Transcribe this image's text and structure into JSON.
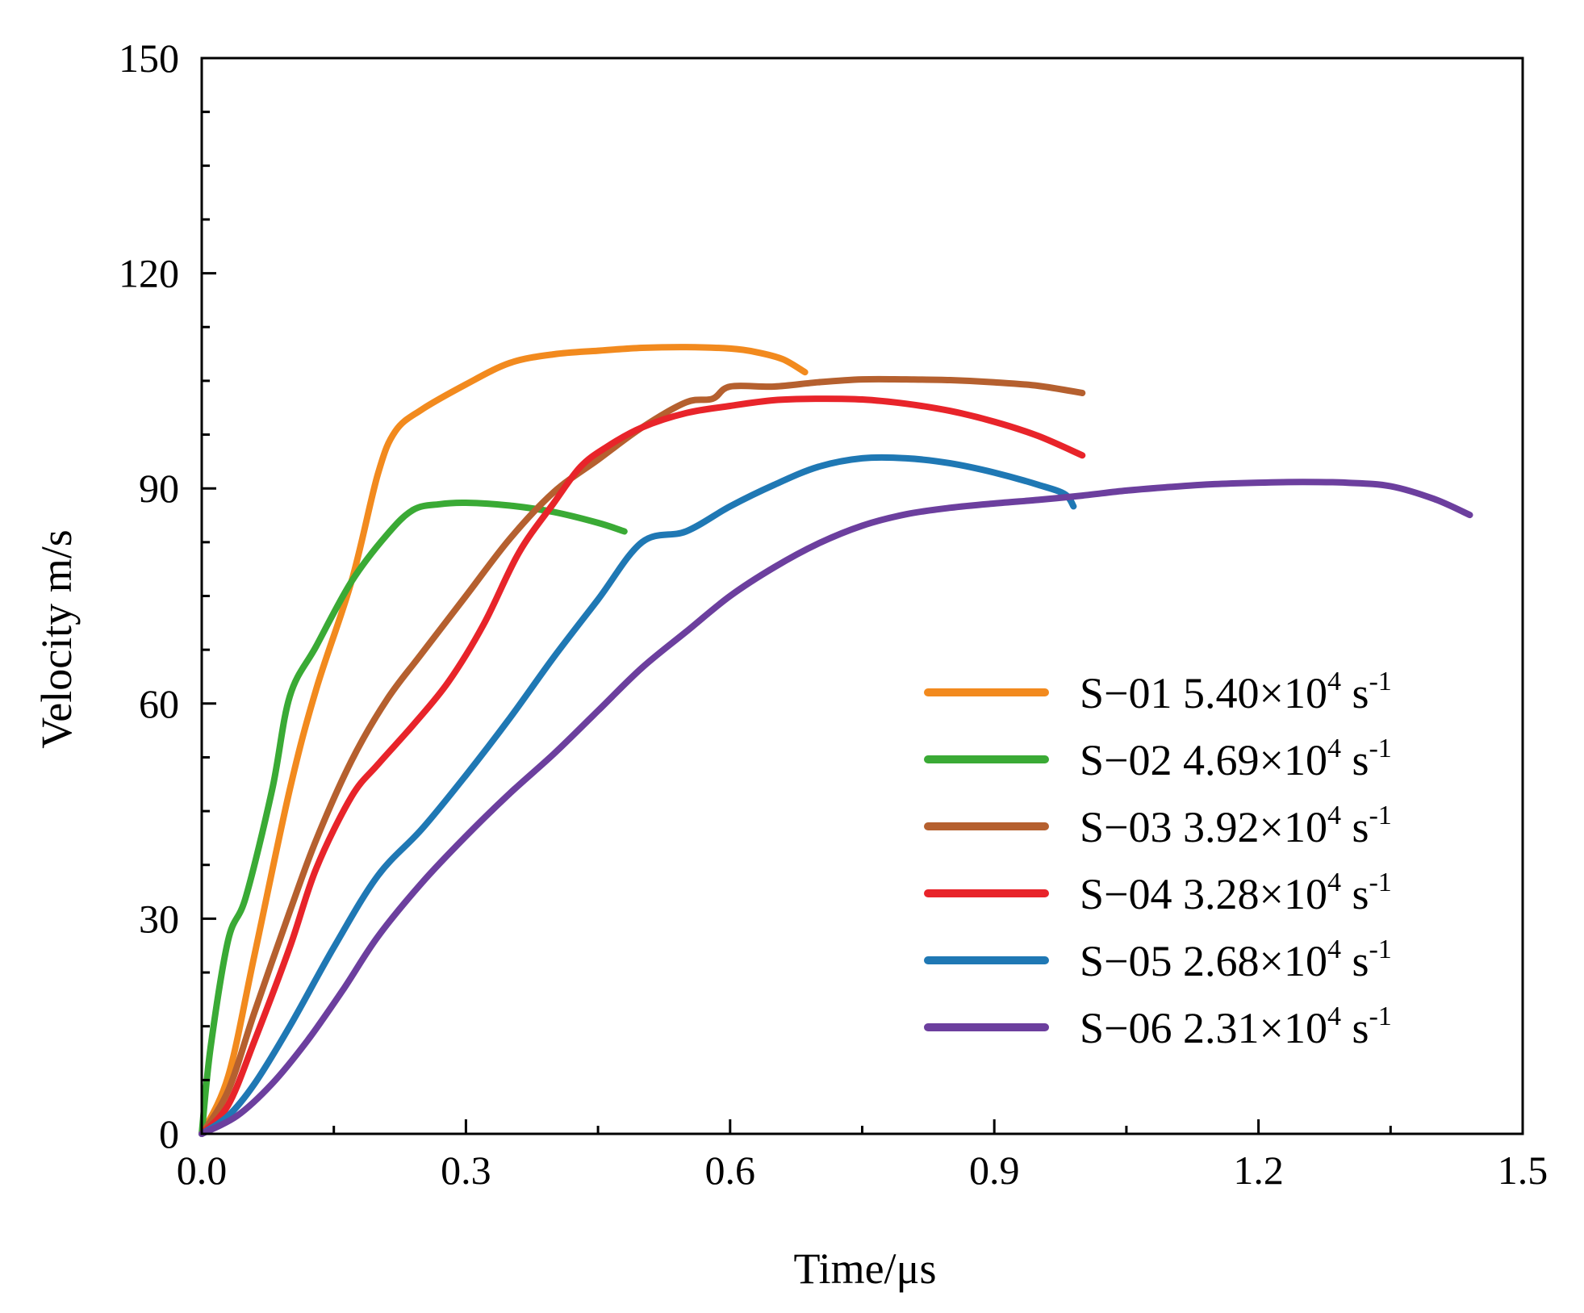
{
  "chart_data": {
    "type": "line",
    "title": "",
    "xlabel": "Time/μs",
    "ylabel": "Velocity m/s",
    "xlim": [
      0.0,
      1.5
    ],
    "ylim": [
      0,
      150
    ],
    "x_ticks": [
      0.0,
      0.3,
      0.6,
      0.9,
      1.2,
      1.5
    ],
    "x_tick_labels": [
      "0.0",
      "0.3",
      "0.6",
      "0.9",
      "1.2",
      "1.5"
    ],
    "x_minor_ticks": [
      0.15,
      0.45,
      0.75,
      1.05,
      1.35
    ],
    "y_ticks": [
      0,
      30,
      60,
      90,
      120,
      150
    ],
    "y_tick_labels": [
      "0",
      "30",
      "60",
      "90",
      "120",
      "150"
    ],
    "y_minor_ticks": [
      7.5,
      15,
      22.5,
      37.5,
      45,
      52.5,
      67.5,
      75,
      82.5,
      97.5,
      105,
      112.5,
      127.5,
      135,
      142.5
    ],
    "grid": false,
    "legend_position": "bottom-right",
    "series": [
      {
        "name": "S−01",
        "rate_mantissa": "5.40×10",
        "rate_exp": "4",
        "rate_unit": "s",
        "rate_unit_exp": "-1",
        "color": "#f28a1e",
        "x": [
          0.0,
          0.03,
          0.06,
          0.1,
          0.13,
          0.17,
          0.2,
          0.22,
          0.25,
          0.3,
          0.35,
          0.4,
          0.45,
          0.5,
          0.55,
          0.6,
          0.63,
          0.66,
          0.685
        ],
        "y": [
          0,
          8,
          25,
          48,
          62,
          77,
          92,
          98,
          101,
          104.5,
          107.5,
          108.7,
          109.2,
          109.6,
          109.7,
          109.5,
          109.0,
          108.0,
          106.2
        ]
      },
      {
        "name": "S−02",
        "rate_mantissa": "4.69×10",
        "rate_exp": "4",
        "rate_unit": "s",
        "rate_unit_exp": "-1",
        "color": "#3aaa35",
        "x": [
          0.0,
          0.01,
          0.03,
          0.05,
          0.08,
          0.1,
          0.13,
          0.17,
          0.21,
          0.24,
          0.27,
          0.3,
          0.35,
          0.4,
          0.45,
          0.48
        ],
        "y": [
          0,
          12,
          27,
          33,
          48,
          61,
          68,
          77,
          83.5,
          87,
          87.8,
          88.0,
          87.6,
          86.7,
          85.2,
          84
        ]
      },
      {
        "name": "S−03",
        "rate_mantissa": "3.92×10",
        "rate_exp": "4",
        "rate_unit": "s",
        "rate_unit_exp": "-1",
        "color": "#b5602f",
        "x": [
          0.0,
          0.03,
          0.06,
          0.1,
          0.13,
          0.17,
          0.21,
          0.25,
          0.3,
          0.35,
          0.4,
          0.45,
          0.5,
          0.55,
          0.58,
          0.6,
          0.65,
          0.7,
          0.75,
          0.8,
          0.85,
          0.9,
          0.95,
          1.0
        ],
        "y": [
          0,
          6,
          17,
          31,
          41,
          52,
          60.5,
          67,
          75,
          83,
          89.5,
          94,
          98.5,
          102,
          102.5,
          104.2,
          104.2,
          104.8,
          105.2,
          105.2,
          105.1,
          104.8,
          104.3,
          103.3
        ]
      },
      {
        "name": "S−04",
        "rate_mantissa": "3.28×10",
        "rate_exp": "4",
        "rate_unit": "s",
        "rate_unit_exp": "-1",
        "color": "#e8242a",
        "x": [
          0.0,
          0.03,
          0.06,
          0.1,
          0.13,
          0.17,
          0.2,
          0.24,
          0.28,
          0.32,
          0.36,
          0.4,
          0.43,
          0.46,
          0.5,
          0.55,
          0.6,
          0.65,
          0.7,
          0.75,
          0.8,
          0.85,
          0.9,
          0.95,
          1.0
        ],
        "y": [
          0,
          4,
          13,
          26,
          37,
          47,
          51.5,
          57,
          63,
          71,
          81,
          88,
          93,
          95.8,
          98.5,
          100.5,
          101.5,
          102.3,
          102.5,
          102.4,
          101.8,
          100.8,
          99.3,
          97.3,
          94.6
        ]
      },
      {
        "name": "S−05",
        "rate_mantissa": "2.68×10",
        "rate_exp": "4",
        "rate_unit": "s",
        "rate_unit_exp": "-1",
        "color": "#1f78b4",
        "x": [
          0.0,
          0.03,
          0.06,
          0.1,
          0.15,
          0.2,
          0.25,
          0.3,
          0.35,
          0.4,
          0.45,
          0.5,
          0.55,
          0.6,
          0.65,
          0.7,
          0.75,
          0.8,
          0.85,
          0.9,
          0.95,
          0.98,
          0.99
        ],
        "y": [
          0,
          2.5,
          7,
          15,
          26,
          36,
          42.5,
          50,
          58,
          66.5,
          74.5,
          82.5,
          84,
          87.5,
          90.5,
          93,
          94.2,
          94.2,
          93.5,
          92.2,
          90.5,
          89.2,
          87.5
        ]
      },
      {
        "name": "S−06",
        "rate_mantissa": "2.31×10",
        "rate_exp": "4",
        "rate_unit": "s",
        "rate_unit_exp": "-1",
        "color": "#6c3f9e",
        "x": [
          0.0,
          0.04,
          0.08,
          0.12,
          0.16,
          0.2,
          0.25,
          0.3,
          0.35,
          0.4,
          0.45,
          0.5,
          0.55,
          0.6,
          0.65,
          0.7,
          0.75,
          0.8,
          0.85,
          0.9,
          0.95,
          1.0,
          1.05,
          1.1,
          1.15,
          1.2,
          1.25,
          1.3,
          1.35,
          1.4,
          1.44
        ],
        "y": [
          0,
          2.5,
          7,
          13,
          20,
          27.5,
          35,
          41.5,
          47.5,
          53,
          59,
          65,
          70,
          75,
          79,
          82.3,
          84.8,
          86.4,
          87.3,
          87.9,
          88.4,
          89.0,
          89.7,
          90.2,
          90.6,
          90.8,
          90.9,
          90.8,
          90.3,
          88.5,
          86.3
        ]
      }
    ]
  }
}
